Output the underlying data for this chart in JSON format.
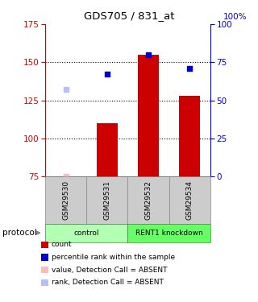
{
  "title": "GDS705 / 831_at",
  "samples": [
    "GSM29530",
    "GSM29531",
    "GSM29532",
    "GSM29534"
  ],
  "groups": [
    {
      "label": "control",
      "indices": [
        0,
        1
      ],
      "color": "#b3ffb3"
    },
    {
      "label": "RENT1 knockdown",
      "indices": [
        2,
        3
      ],
      "color": "#66ff66"
    }
  ],
  "bar_values": [
    75,
    110,
    155,
    128
  ],
  "bar_color": "#cc0000",
  "bar_bottom": 75,
  "dot_values_left": [
    null,
    142,
    155,
    146
  ],
  "dot_color": "#0000cc",
  "absent_value_left": [
    75,
    null,
    null,
    null
  ],
  "absent_value_color": "#ffbbbb",
  "absent_rank_left": [
    132,
    null,
    null,
    null
  ],
  "absent_rank_color": "#bbbbff",
  "ylim": [
    75,
    175
  ],
  "yticks_left": [
    75,
    100,
    125,
    150,
    175
  ],
  "yticks_right": [
    0,
    25,
    50,
    75,
    100
  ],
  "ylabel_left_color": "#cc0000",
  "ylabel_right_color": "#0000cc",
  "x_positions": [
    1,
    2,
    3,
    4
  ],
  "bar_width": 0.5,
  "legend_items": [
    {
      "label": "count",
      "color": "#cc0000"
    },
    {
      "label": "percentile rank within the sample",
      "color": "#0000cc"
    },
    {
      "label": "value, Detection Call = ABSENT",
      "color": "#ffbbbb"
    },
    {
      "label": "rank, Detection Call = ABSENT",
      "color": "#bbbbff"
    }
  ]
}
